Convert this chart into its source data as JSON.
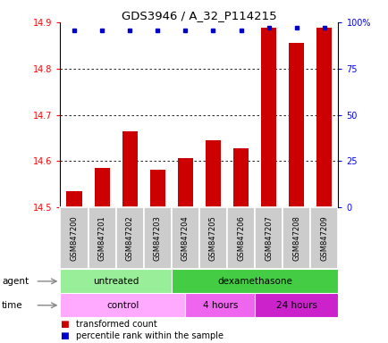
{
  "title": "GDS3946 / A_32_P114215",
  "samples": [
    "GSM847200",
    "GSM847201",
    "GSM847202",
    "GSM847203",
    "GSM847204",
    "GSM847205",
    "GSM847206",
    "GSM847207",
    "GSM847208",
    "GSM847209"
  ],
  "red_values": [
    14.535,
    14.585,
    14.665,
    14.582,
    14.607,
    14.645,
    14.628,
    14.888,
    14.855,
    14.888
  ],
  "blue_y_positions": [
    14.883,
    14.883,
    14.883,
    14.883,
    14.882,
    14.882,
    14.882,
    14.888,
    14.888,
    14.888
  ],
  "ylim_left": [
    14.5,
    14.9
  ],
  "yticks_left": [
    14.5,
    14.6,
    14.7,
    14.8,
    14.9
  ],
  "yticks_right": [
    0,
    25,
    50,
    75,
    100
  ],
  "ytick_labels_right": [
    "0",
    "25",
    "50",
    "75",
    "100%"
  ],
  "bar_color": "#cc0000",
  "dot_color": "#0000cc",
  "bar_bottom": 14.5,
  "sample_box_color": "#cccccc",
  "agent_untreated_color": "#99ee99",
  "agent_dex_color": "#44cc44",
  "time_control_color": "#ffaaff",
  "time_4h_color": "#ee66ee",
  "time_24h_color": "#cc22cc",
  "legend_items": [
    {
      "color": "#cc0000",
      "label": "transformed count"
    },
    {
      "color": "#0000cc",
      "label": "percentile rank within the sample"
    }
  ]
}
